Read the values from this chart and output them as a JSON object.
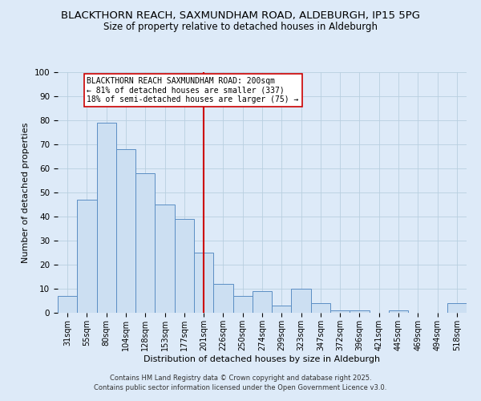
{
  "title": "BLACKTHORN REACH, SAXMUNDHAM ROAD, ALDEBURGH, IP15 5PG",
  "subtitle": "Size of property relative to detached houses in Aldeburgh",
  "xlabel": "Distribution of detached houses by size in Aldeburgh",
  "ylabel": "Number of detached properties",
  "bar_labels": [
    "31sqm",
    "55sqm",
    "80sqm",
    "104sqm",
    "128sqm",
    "153sqm",
    "177sqm",
    "201sqm",
    "226sqm",
    "250sqm",
    "274sqm",
    "299sqm",
    "323sqm",
    "347sqm",
    "372sqm",
    "396sqm",
    "421sqm",
    "445sqm",
    "469sqm",
    "494sqm",
    "518sqm"
  ],
  "bar_values": [
    7,
    47,
    79,
    68,
    58,
    45,
    39,
    25,
    12,
    7,
    9,
    3,
    10,
    4,
    1,
    1,
    0,
    1,
    0,
    0,
    4
  ],
  "bar_color": "#ccdff2",
  "bar_edge_color": "#5b8ec4",
  "background_color": "#ddeaf8",
  "grid_color": "#b8cfe0",
  "vline_x_index": 7,
  "vline_color": "#cc0000",
  "annotation_text": "BLACKTHORN REACH SAXMUNDHAM ROAD: 200sqm\n← 81% of detached houses are smaller (337)\n18% of semi-detached houses are larger (75) →",
  "annotation_box_color": "#ffffff",
  "annotation_border_color": "#cc0000",
  "ylim": [
    0,
    100
  ],
  "footnote1": "Contains HM Land Registry data © Crown copyright and database right 2025.",
  "footnote2": "Contains public sector information licensed under the Open Government Licence v3.0.",
  "title_fontsize": 9.5,
  "subtitle_fontsize": 8.5
}
